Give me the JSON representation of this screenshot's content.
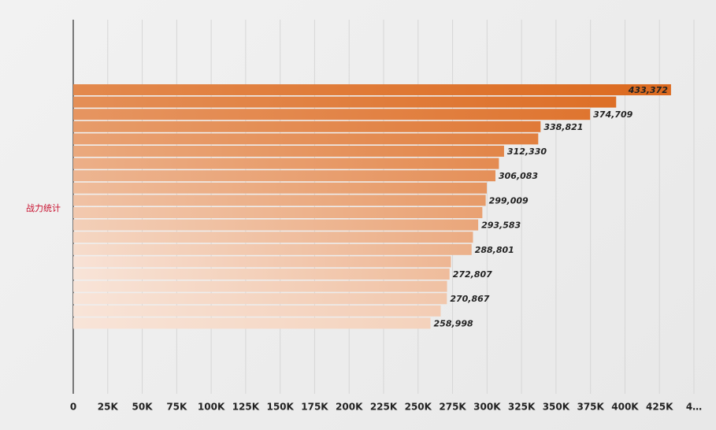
{
  "chart_data": {
    "type": "bar",
    "orientation": "horizontal",
    "y_label": "战力统计",
    "values": [
      433372,
      393600,
      374709,
      338821,
      337100,
      312330,
      308600,
      306083,
      299800,
      299009,
      296600,
      293583,
      289800,
      288801,
      273800,
      272807,
      271000,
      270867,
      266400,
      258998
    ],
    "value_labels": [
      "433,372",
      null,
      "374,709",
      "338,821",
      null,
      "312,330",
      null,
      "306,083",
      null,
      "299,009",
      null,
      "293,583",
      null,
      "288,801",
      null,
      "272,807",
      null,
      "270,867",
      null,
      "258,998"
    ],
    "color_range": [
      "#dc6a1f",
      "#f8e4d8"
    ],
    "xlim": [
      0,
      450000
    ],
    "xticks": [
      0,
      {
        "value": 25000,
        "label": "25K"
      },
      {
        "value": 50000,
        "label": "50K"
      },
      {
        "value": 75000,
        "label": "75K"
      },
      {
        "value": 100000,
        "label": "100K"
      },
      {
        "value": 125000,
        "label": "125K"
      },
      {
        "value": 150000,
        "label": "150K"
      },
      {
        "value": 175000,
        "label": "175K"
      },
      {
        "value": 200000,
        "label": "200K"
      },
      {
        "value": 225000,
        "label": "225K"
      },
      {
        "value": 250000,
        "label": "250K"
      },
      {
        "value": 275000,
        "label": "275K"
      },
      {
        "value": 300000,
        "label": "300K"
      },
      {
        "value": 325000,
        "label": "325K"
      },
      {
        "value": 350000,
        "label": "350K"
      },
      {
        "value": 375000,
        "label": "375K"
      },
      {
        "value": 400000,
        "label": "400K"
      },
      {
        "value": 425000,
        "label": "425K"
      },
      {
        "value": 450000,
        "label": "4…"
      }
    ],
    "grid": true
  }
}
